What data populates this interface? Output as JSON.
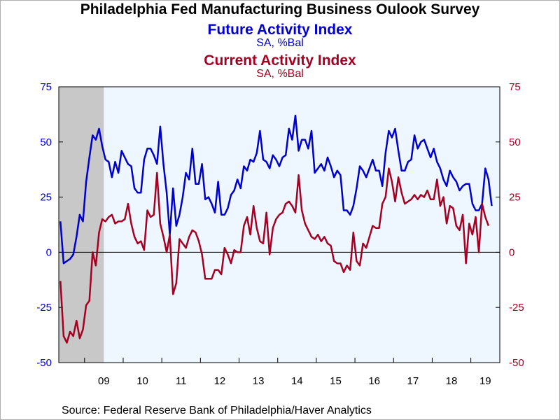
{
  "chart_data": {
    "type": "line",
    "title": "Philadelphia Fed Manufacturing Business Oulook Survey",
    "series": [
      {
        "name": "Future Activity Index",
        "units": "SA, %Bal",
        "color": "#0000cc",
        "axis": "left",
        "values": [
          14,
          -5,
          -4,
          -3,
          -1,
          7,
          17,
          14,
          32,
          43,
          53,
          51,
          56,
          48,
          42,
          41,
          34,
          41,
          36,
          46,
          43,
          40,
          39,
          29,
          27,
          27,
          42,
          47,
          47,
          44,
          40,
          57,
          40,
          27,
          8,
          29,
          12,
          17,
          25,
          36,
          33,
          47,
          31,
          31,
          40,
          24,
          25,
          22,
          18,
          32,
          17,
          17,
          20,
          26,
          28,
          33,
          29,
          39,
          37,
          42,
          41,
          45,
          55,
          42,
          41,
          38,
          44,
          42,
          39,
          43,
          44,
          56,
          51,
          62,
          46,
          51,
          51,
          47,
          55,
          36,
          38,
          40,
          37,
          43,
          39,
          34,
          37,
          35,
          19,
          19,
          17,
          21,
          29,
          39,
          37,
          34,
          38,
          42,
          37,
          37,
          30,
          45,
          55,
          52,
          56,
          46,
          37,
          37,
          41,
          42,
          53,
          47,
          50,
          51,
          47,
          43,
          47,
          41,
          38,
          33,
          30,
          37,
          34,
          32,
          28,
          30,
          31,
          31,
          22,
          19,
          19,
          22,
          38,
          33,
          21
        ]
      },
      {
        "name": "Current Activity Index",
        "units": "SA, %Bal",
        "color": "#a50021",
        "axis": "right",
        "values": [
          -13,
          -38,
          -41,
          -36,
          -38,
          -31,
          -39,
          -35,
          -24,
          -22,
          0,
          -6,
          9,
          15,
          14,
          16,
          17,
          13,
          14,
          14,
          15,
          22,
          13,
          7,
          4,
          5,
          1,
          19,
          16,
          17,
          36,
          13,
          7,
          0,
          8,
          -19,
          -14,
          6,
          4,
          2,
          7,
          10,
          9,
          5,
          -1,
          -12,
          -12,
          -12,
          -8,
          -8,
          -10,
          2,
          -1,
          -5,
          1,
          0,
          0,
          12,
          16,
          8,
          21,
          11,
          5,
          4,
          18,
          -1,
          11,
          15,
          17,
          18,
          22,
          23,
          21,
          18,
          35,
          19,
          13,
          10,
          7,
          6,
          8,
          5,
          7,
          4,
          3,
          -4,
          -5,
          -5,
          -9,
          -6,
          -8,
          9,
          -4,
          -6,
          4,
          2,
          7,
          12,
          11,
          11,
          22,
          25,
          38,
          32,
          23,
          34,
          27,
          22,
          23,
          24,
          26,
          24,
          26,
          25,
          28,
          24,
          24,
          33,
          21,
          25,
          13,
          21,
          20,
          12,
          10,
          17,
          -5,
          13,
          8,
          16,
          0,
          22,
          16,
          12
        ]
      }
    ],
    "x_start": "2008-05",
    "x_end": "2019-09",
    "x_tick_labels": [
      "09",
      "10",
      "11",
      "12",
      "13",
      "14",
      "15",
      "16",
      "17",
      "18",
      "19"
    ],
    "y_left": {
      "min": -50,
      "max": 75,
      "ticks": [
        75,
        50,
        25,
        0,
        -25,
        -50
      ],
      "color": "#0000cc"
    },
    "y_right": {
      "min": -50,
      "max": 75,
      "ticks": [
        75,
        50,
        25,
        0,
        -25,
        -50
      ],
      "color": "#a50021"
    },
    "recession": {
      "start": "2008-05",
      "end": "2009-06"
    },
    "plot_background": "#eef6ff",
    "recession_color": "#c8c8c8"
  },
  "titles": {
    "main": "Philadelphia Fed Manufacturing Business Oulook Survey",
    "series1": "Future Activity Index",
    "series1_units": "SA, %Bal",
    "series2": "Current Activity Index",
    "series2_units": "SA, %Bal"
  },
  "source": "Source:  Federal Reserve Bank of Philadelphia/Haver Analytics",
  "colors": {
    "blue": "#0000cc",
    "red": "#a50021"
  }
}
